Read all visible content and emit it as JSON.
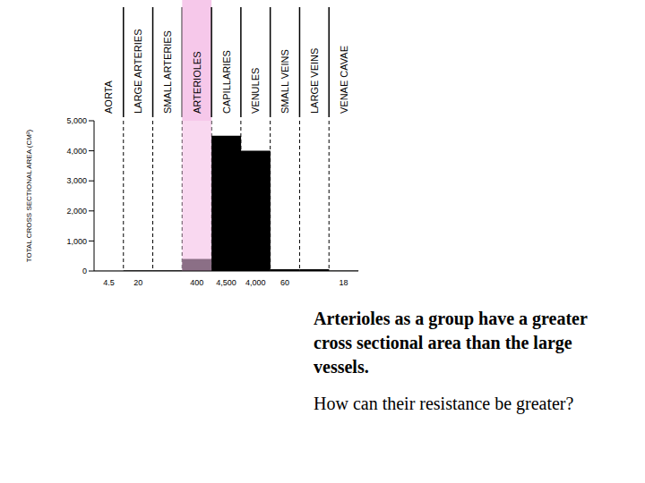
{
  "chart_data": {
    "type": "bar",
    "categories": [
      "AORTA",
      "LARGE ARTERIES",
      "SMALL ARTERIES",
      "ARTERIOLES",
      "CAPILLARIES",
      "VENULES",
      "SMALL VEINS",
      "LARGE VEINS",
      "VENAE CAVAE"
    ],
    "values": [
      4.5,
      20,
      20,
      400,
      4500,
      4000,
      60,
      60,
      18
    ],
    "value_labels": [
      "4.5",
      "20",
      null,
      "400",
      "4,500",
      "4,000",
      "60",
      null,
      "18"
    ],
    "colors": [
      "#000000",
      "#000000",
      "#000000",
      "#8b6f86",
      "#000000",
      "#000000",
      "#000000",
      "#000000",
      "#000000"
    ],
    "y_label": "TOTAL CROSS SECTIONAL AREA (CM²)",
    "ylim": [
      0,
      5000
    ],
    "yticks": [
      0,
      {
        "value": 1000,
        "label": "1,000"
      },
      {
        "value": 2000,
        "label": "2,000"
      },
      {
        "value": 3000,
        "label": "3,000"
      },
      {
        "value": 4000,
        "label": "4,000"
      },
      {
        "value": 5000,
        "label": "5,000"
      }
    ],
    "annotations": [
      "Arterioles as a group have a greater cross sectional area than the large vessels.",
      "How can their resistance be greater?"
    ]
  }
}
